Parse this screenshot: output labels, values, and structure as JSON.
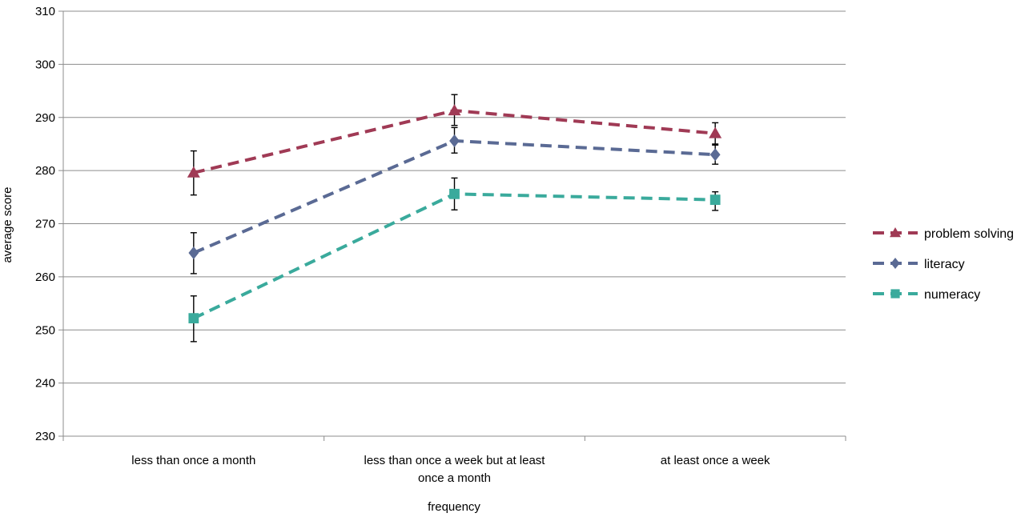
{
  "chart_data": {
    "type": "line",
    "title": "",
    "xlabel": "frequency",
    "ylabel": "average score",
    "ylim": [
      230,
      310
    ],
    "y_ticks": [
      230,
      240,
      250,
      260,
      270,
      280,
      290,
      300,
      310
    ],
    "y_tick_labels": [
      "230",
      "240",
      "250",
      "260",
      "270",
      "280",
      "290",
      "300",
      "310"
    ],
    "grid": true,
    "legend_position": "right",
    "categories": [
      [
        "less than once a month"
      ],
      [
        "less than once a week but at least",
        "once a month"
      ],
      [
        "at least once a week"
      ]
    ],
    "series": [
      {
        "name": "problem solving",
        "color": "#a03a55",
        "marker": "triangle",
        "values": [
          279.6,
          291.3,
          287.0
        ],
        "error_low": [
          275.4,
          288.5,
          285.0
        ],
        "error_high": [
          283.7,
          294.3,
          289.0
        ]
      },
      {
        "name": "literacy",
        "color": "#5a6a94",
        "marker": "diamond",
        "values": [
          264.5,
          285.6,
          283.0
        ],
        "error_low": [
          260.6,
          283.3,
          281.2
        ],
        "error_high": [
          268.3,
          288.1,
          284.8
        ]
      },
      {
        "name": "numeracy",
        "color": "#3aaa9c",
        "marker": "square",
        "values": [
          252.2,
          275.6,
          274.5
        ],
        "error_low": [
          247.8,
          272.6,
          272.5
        ],
        "error_high": [
          256.4,
          278.6,
          276.0
        ]
      }
    ]
  }
}
